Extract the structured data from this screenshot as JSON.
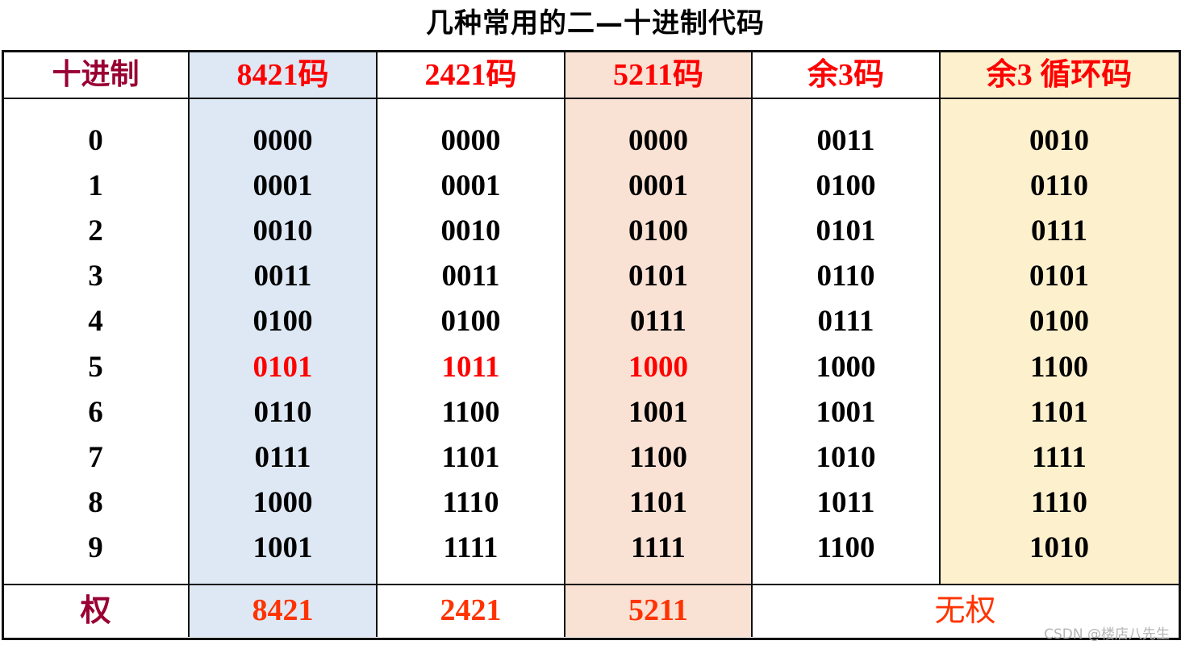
{
  "title": "几种常用的二—十进制代码",
  "colors": {
    "decimal_header": "#990033",
    "code_header": "#ff0000",
    "highlight_value": "#ff0000",
    "weight_text": "#ff3300",
    "col_8421_bg": "#dde8f4",
    "col_5211_bg": "#f9e1d4",
    "col_gray_bg": "#fdf0cd"
  },
  "columns": [
    {
      "header": "十进制",
      "values": [
        "0",
        "1",
        "2",
        "3",
        "4",
        "5",
        "6",
        "7",
        "8",
        "9"
      ],
      "weight": "权"
    },
    {
      "header": "8421码",
      "values": [
        "0000",
        "0001",
        "0010",
        "0011",
        "0100",
        "0101",
        "0110",
        "0111",
        "1000",
        "1001"
      ],
      "weight": "8421"
    },
    {
      "header": "2421码",
      "values": [
        "0000",
        "0001",
        "0010",
        "0011",
        "0100",
        "1011",
        "1100",
        "1101",
        "1110",
        "1111"
      ],
      "weight": "2421"
    },
    {
      "header": "5211码",
      "values": [
        "0000",
        "0001",
        "0100",
        "0101",
        "0111",
        "1000",
        "1001",
        "1100",
        "1101",
        "1111"
      ],
      "weight": "5211"
    },
    {
      "header": "余3码",
      "values": [
        "0011",
        "0100",
        "0101",
        "0110",
        "0111",
        "1000",
        "1001",
        "1010",
        "1011",
        "1100"
      ]
    },
    {
      "header": "余3 循环码",
      "values": [
        "0010",
        "0110",
        "0111",
        "0101",
        "0100",
        "1100",
        "1101",
        "1111",
        "1110",
        "1010"
      ]
    }
  ],
  "unweighted_label": "无权",
  "highlight_row": 5,
  "watermark": "CSDN @楼店八先生"
}
